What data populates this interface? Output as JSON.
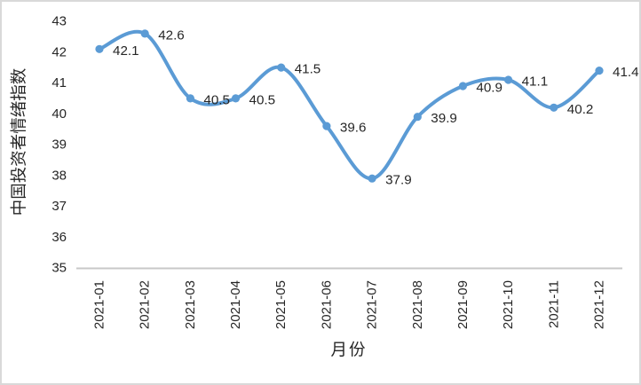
{
  "chart_data": {
    "type": "line",
    "title": "",
    "xlabel": "月份",
    "ylabel": "中国投资者情绪指数",
    "categories": [
      "2021-01",
      "2021-02",
      "2021-03",
      "2021-04",
      "2021-05",
      "2021-06",
      "2021-07",
      "2021-08",
      "2021-09",
      "2021-10",
      "2021-11",
      "2021-12"
    ],
    "series": [
      {
        "name": "中国投资者情绪指数",
        "values": [
          42.1,
          42.6,
          40.5,
          40.5,
          41.5,
          39.6,
          37.9,
          39.9,
          40.9,
          41.1,
          40.2,
          41.4
        ],
        "data_labels": [
          "42.1",
          "42.6",
          "40.5",
          "40.5",
          "41.5",
          "39.6",
          "37.9",
          "39.9",
          "40.9",
          "41.1",
          "40.2",
          "41.4"
        ]
      }
    ],
    "ylim": [
      35,
      43
    ],
    "ytick_step": 1,
    "yticks": [
      "43",
      "42",
      "41",
      "40",
      "39",
      "38",
      "37",
      "36",
      "35"
    ],
    "grid": false,
    "legend": "none",
    "smooth_line": true,
    "markers": "circle",
    "colors": {
      "line": "#5b9bd5",
      "marker": "#5b9bd5",
      "text": "#262626",
      "axis_line": "#c8c8c8",
      "frame_border": "#d9d9d9",
      "background": "#ffffff"
    }
  }
}
